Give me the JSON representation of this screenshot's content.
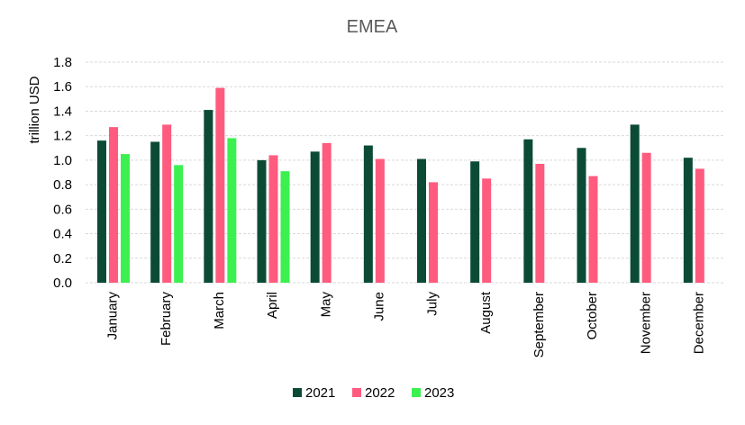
{
  "chart_data": {
    "type": "bar",
    "title": "EMEA",
    "xlabel": "",
    "ylabel": "trillion USD",
    "ylim": [
      0,
      1.8
    ],
    "yticks": [
      "0.0",
      "0.2",
      "0.4",
      "0.6",
      "0.8",
      "1.0",
      "1.2",
      "1.4",
      "1.6",
      "1.8"
    ],
    "grid": true,
    "legend_position": "bottom",
    "categories": [
      "January",
      "February",
      "March",
      "April",
      "May",
      "June",
      "July",
      "August",
      "September",
      "October",
      "November",
      "December"
    ],
    "series": [
      {
        "name": "2021",
        "color": "#0b4b35",
        "values": [
          1.16,
          1.15,
          1.41,
          1.0,
          1.07,
          1.12,
          1.01,
          0.99,
          1.17,
          1.1,
          1.29,
          1.02
        ]
      },
      {
        "name": "2022",
        "color": "#ff5b7e",
        "values": [
          1.27,
          1.29,
          1.59,
          1.04,
          1.14,
          1.01,
          0.82,
          0.85,
          0.97,
          0.87,
          1.06,
          0.93
        ]
      },
      {
        "name": "2023",
        "color": "#3cf04f",
        "values": [
          1.05,
          0.96,
          1.18,
          0.91,
          null,
          null,
          null,
          null,
          null,
          null,
          null,
          null
        ]
      }
    ]
  }
}
